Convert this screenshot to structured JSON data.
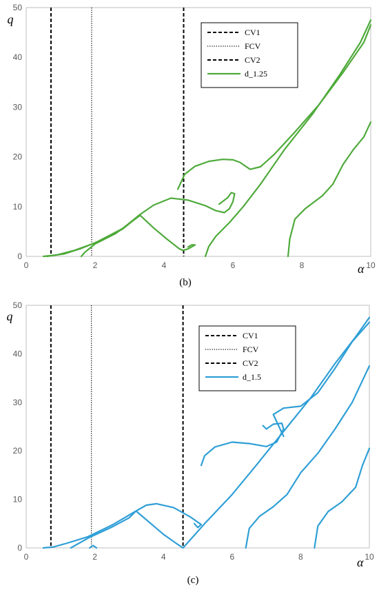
{
  "chart_data": [
    {
      "type": "line",
      "caption": "(b)",
      "xlabel": "α",
      "ylabel": "q",
      "xlim": [
        0,
        10
      ],
      "ylim": [
        0,
        50
      ],
      "xticks": [
        0,
        2,
        4,
        6,
        8,
        10
      ],
      "yticks": [
        0,
        10,
        20,
        30,
        40,
        50
      ],
      "legend_position": "top-right",
      "color": "#4eaa3a",
      "vlines": [
        {
          "name": "CV1",
          "x": 0.72,
          "style": "dashed"
        },
        {
          "name": "FCV",
          "x": 1.9,
          "style": "dotted"
        },
        {
          "name": "CV2",
          "x": 4.57,
          "style": "dashed"
        }
      ],
      "series": [
        {
          "name": "d_1.25",
          "segments": [
            [
              [
                0.5,
                0
              ],
              [
                0.9,
                0.3
              ],
              [
                1.4,
                1.2
              ],
              [
                2,
                2.7
              ],
              [
                2.8,
                5.6
              ],
              [
                3.3,
                8.4
              ],
              [
                3.7,
                10.3
              ],
              [
                4.2,
                11.7
              ],
              [
                4.7,
                11.3
              ],
              [
                5.2,
                10.2
              ],
              [
                5.5,
                9.2
              ],
              [
                5.75,
                8.8
              ],
              [
                5.9,
                9.6
              ],
              [
                6.0,
                11
              ],
              [
                6.05,
                12.6
              ],
              [
                5.95,
                12.8
              ],
              [
                5.85,
                11.8
              ],
              [
                5.6,
                10.5
              ]
            ],
            [
              [
                0.6,
                0
              ],
              [
                1.1,
                0.5
              ],
              [
                1.6,
                1.6
              ],
              [
                2.3,
                3.6
              ],
              [
                2.8,
                5.5
              ],
              [
                3.3,
                8.3
              ],
              [
                3.7,
                5.7
              ],
              [
                4.1,
                3.4
              ],
              [
                4.45,
                1.5
              ],
              [
                4.55,
                1.2
              ],
              [
                4.7,
                1.5
              ],
              [
                4.9,
                2.3
              ],
              [
                4.8,
                2.3
              ],
              [
                4.7,
                1.9
              ]
            ],
            [
              [
                4.4,
                13.5
              ],
              [
                4.6,
                16.5
              ],
              [
                4.9,
                18.1
              ],
              [
                5.3,
                19.1
              ],
              [
                5.7,
                19.5
              ],
              [
                6.0,
                19.4
              ],
              [
                6.2,
                18.9
              ],
              [
                6.5,
                17.5
              ],
              [
                6.8,
                18
              ],
              [
                7.2,
                20.5
              ],
              [
                7.8,
                25
              ],
              [
                8.5,
                30.5
              ],
              [
                9.2,
                37
              ],
              [
                9.8,
                43
              ],
              [
                10,
                46.5
              ]
            ],
            [
              [
                1.6,
                0
              ],
              [
                1.7,
                0.8
              ],
              [
                2,
                2.5
              ],
              [
                2.6,
                4.6
              ],
              [
                3.3,
                8.2
              ]
            ],
            [
              [
                5.2,
                0
              ],
              [
                5.3,
                2
              ],
              [
                5.5,
                4
              ],
              [
                5.9,
                6.8
              ],
              [
                6.3,
                10
              ],
              [
                6.8,
                14.5
              ],
              [
                7.5,
                21.5
              ],
              [
                8.3,
                28.5
              ],
              [
                9.1,
                36.5
              ],
              [
                9.7,
                43
              ],
              [
                10,
                47.5
              ]
            ],
            [
              [
                7.6,
                0
              ],
              [
                7.65,
                3.5
              ],
              [
                7.8,
                7.5
              ],
              [
                8.1,
                9.6
              ],
              [
                8.6,
                12.2
              ],
              [
                8.9,
                14.5
              ],
              [
                9.2,
                18.5
              ],
              [
                9.5,
                21.5
              ],
              [
                9.8,
                24
              ],
              [
                10,
                27
              ]
            ]
          ]
        }
      ]
    },
    {
      "type": "line",
      "caption": "(c)",
      "xlabel": "α",
      "ylabel": "q",
      "xlim": [
        0,
        10
      ],
      "ylim": [
        0,
        50
      ],
      "xticks": [
        0,
        2,
        4,
        6,
        8,
        10
      ],
      "yticks": [
        0,
        10,
        20,
        30,
        40,
        50
      ],
      "legend_position": "top-right",
      "color": "#2f9fd6",
      "vlines": [
        {
          "name": "CV1",
          "x": 0.72,
          "style": "dashed"
        },
        {
          "name": "FCV",
          "x": 1.9,
          "style": "dotted"
        },
        {
          "name": "CV2",
          "x": 4.57,
          "style": "dashed"
        }
      ],
      "series": [
        {
          "name": "d_1.5",
          "segments": [
            [
              [
                0.5,
                0
              ],
              [
                0.8,
                0.2
              ],
              [
                1.2,
                1
              ],
              [
                1.8,
                2.3
              ],
              [
                2.5,
                4.7
              ],
              [
                3.2,
                7.6
              ],
              [
                3.5,
                8.8
              ],
              [
                3.8,
                9.1
              ],
              [
                4.3,
                8.3
              ],
              [
                4.8,
                6.3
              ],
              [
                5.1,
                4.8
              ],
              [
                5.0,
                4.2
              ],
              [
                4.9,
                5
              ]
            ],
            [
              [
                1.3,
                0
              ],
              [
                1.8,
                2
              ],
              [
                2.5,
                4.3
              ],
              [
                3.0,
                6.2
              ],
              [
                3.2,
                7.6
              ],
              [
                3.6,
                5.2
              ],
              [
                4.0,
                2.8
              ],
              [
                4.4,
                0.8
              ],
              [
                4.57,
                0
              ]
            ],
            [
              [
                5.1,
                17
              ],
              [
                5.2,
                19
              ],
              [
                5.5,
                20.8
              ],
              [
                6.0,
                21.8
              ],
              [
                6.5,
                21.5
              ],
              [
                7.0,
                20.9
              ],
              [
                7.3,
                21.8
              ],
              [
                7.5,
                24.5
              ],
              [
                7.45,
                25.7
              ],
              [
                7.2,
                25.5
              ],
              [
                7.0,
                24.5
              ],
              [
                6.9,
                25.2
              ]
            ],
            [
              [
                4.57,
                0
              ],
              [
                5.2,
                5
              ],
              [
                6.0,
                11
              ],
              [
                6.7,
                17
              ],
              [
                7.5,
                24
              ],
              [
                8.3,
                31
              ],
              [
                9.0,
                38
              ],
              [
                9.6,
                43.5
              ],
              [
                10,
                47.5
              ]
            ],
            [
              [
                6.4,
                0
              ],
              [
                6.5,
                4
              ],
              [
                6.8,
                6.5
              ],
              [
                7.2,
                8.5
              ],
              [
                7.6,
                11
              ],
              [
                8.0,
                15.5
              ],
              [
                8.5,
                19.5
              ],
              [
                9.0,
                24.5
              ],
              [
                9.5,
                30
              ],
              [
                10,
                37.5
              ]
            ],
            [
              [
                8.4,
                0
              ],
              [
                8.5,
                4.5
              ],
              [
                8.8,
                7.5
              ],
              [
                9.2,
                9.5
              ],
              [
                9.6,
                12.5
              ],
              [
                9.8,
                17
              ],
              [
                10,
                20.5
              ]
            ],
            [
              [
                7.5,
                23
              ],
              [
                7.2,
                27.5
              ],
              [
                7.5,
                28.8
              ],
              [
                8.0,
                29.2
              ],
              [
                8.5,
                32
              ],
              [
                9.0,
                37
              ],
              [
                9.5,
                42.5
              ],
              [
                10,
                46.5
              ]
            ],
            [
              [
                1.85,
                0
              ],
              [
                1.95,
                0.5
              ],
              [
                2.05,
                0
              ]
            ]
          ]
        }
      ]
    }
  ]
}
